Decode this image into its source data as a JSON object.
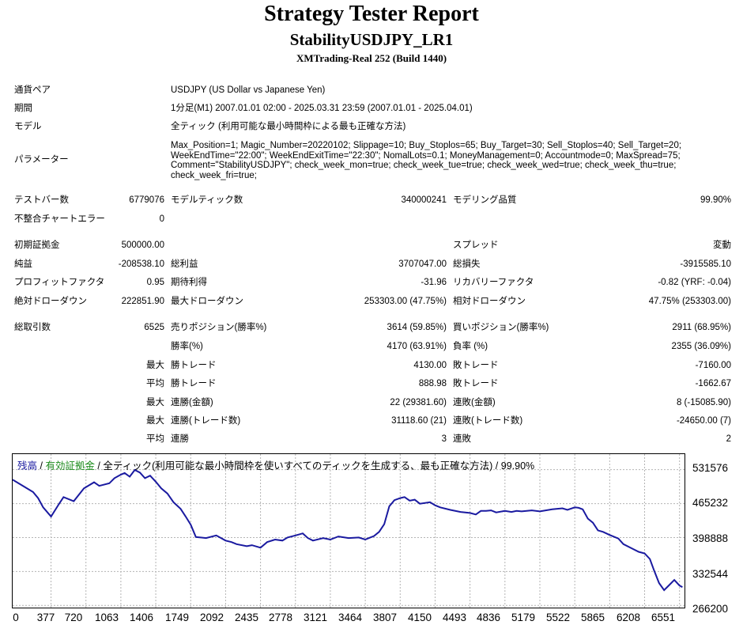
{
  "report": {
    "title": "Strategy Tester Report",
    "subtitle": "StabilityUSDJPY_LR1",
    "server": "XMTrading-Real 252 (Build 1440)"
  },
  "info": {
    "symbol_label": "通貨ペア",
    "symbol_value": "USDJPY (US Dollar vs Japanese Yen)",
    "period_label": "期間",
    "period_value": "1分足(M1) 2007.01.01 02:00 - 2025.03.31 23:59 (2007.01.01 - 2025.04.01)",
    "model_label": "モデル",
    "model_value": "全ティック (利用可能な最小時間枠による最も正確な方法)",
    "params_label": "パラメーター",
    "params_value": "Max_Position=1; Magic_Number=20220102; Slippage=10; Buy_Stoplos=65; Buy_Target=30; Sell_Stoplos=40; Sell_Target=20; WeekEndTime=\"22:00\"; WeekEndExitTime=\"22:30\"; NomalLots=0.1; MoneyManagement=0; Accountmode=0; MaxSpread=75; Comment=\"StabilityUSDJPY\"; check_week_mon=true; check_week_tue=true; check_week_wed=true; check_week_thu=true; check_week_fri=true;"
  },
  "stats": {
    "bars_label": "テストバー数",
    "bars_value": "6779076",
    "ticks_label": "モデルティック数",
    "ticks_value": "340000241",
    "quality_label": "モデリング品質",
    "quality_value": "99.90%",
    "mismatch_label": "不整合チャートエラー",
    "mismatch_value": "0",
    "deposit_label": "初期証拠金",
    "deposit_value": "500000.00",
    "spread_label": "スプレッド",
    "spread_value": "変動",
    "net_label": "純益",
    "net_value": "-208538.10",
    "gross_profit_label": "総利益",
    "gross_profit_value": "3707047.00",
    "gross_loss_label": "総損失",
    "gross_loss_value": "-3915585.10",
    "pf_label": "プロフィットファクタ",
    "pf_value": "0.95",
    "payoff_label": "期待利得",
    "payoff_value": "-31.96",
    "recovery_label": "リカバリーファクタ",
    "recovery_value": "-0.82 (YRF: -0.04)",
    "abs_dd_label": "絶対ドローダウン",
    "abs_dd_value": "222851.90",
    "max_dd_label": "最大ドローダウン",
    "max_dd_value": "253303.00 (47.75%)",
    "rel_dd_label": "相対ドローダウン",
    "rel_dd_value": "47.75% (253303.00)",
    "trades_label": "総取引数",
    "trades_value": "6525",
    "short_label": "売りポジション(勝率%)",
    "short_value": "3614 (59.85%)",
    "long_label": "買いポジション(勝率%)",
    "long_value": "2911 (68.95%)",
    "winrate_label": "勝率(%)",
    "winrate_value": "4170 (63.91%)",
    "lossrate_label": "負率 (%)",
    "lossrate_value": "2355 (36.09%)",
    "max_word": "最大",
    "avg_word": "平均",
    "win_trade_label": "勝トレード",
    "loss_trade_label": "敗トレード",
    "largest_win_value": "4130.00",
    "largest_loss_value": "-7160.00",
    "average_win_value": "888.98",
    "average_loss_value": "-1662.67",
    "consec_win_amt_label": "連勝(金額)",
    "consec_win_amt_value": "22 (29381.60)",
    "consec_loss_amt_label": "連敗(金額)",
    "consec_loss_amt_value": "8 (-15085.90)",
    "consec_win_cnt_label": "連勝(トレード数)",
    "consec_win_cnt_value": "31118.60 (21)",
    "consec_loss_cnt_label": "連敗(トレード数)",
    "consec_loss_cnt_value": "-24650.00 (7)",
    "avg_consec_win_label": "連勝",
    "avg_consec_win_value": "3",
    "avg_consec_loss_label": "連敗",
    "avg_consec_loss_value": "2"
  },
  "chart_data": {
    "type": "line",
    "legend": {
      "balance": "残高",
      "sep1": " / ",
      "equity": "有効証拠金",
      "sep2": " / ",
      "description": "全ティック(利用可能な最小時間枠を使いすべてのティックを生成する、最も正確な方法) / 99.90%"
    },
    "colors": {
      "line": "#1a1aa0",
      "grid": "#b4b4b4",
      "balance_text": "#1a1aa0",
      "equity_text": "#1a8a1a"
    },
    "grid": true,
    "xlim": [
      0,
      6600
    ],
    "ylim": [
      262000,
      562000
    ],
    "x_ticks": [
      "0",
      "377",
      "720",
      "1063",
      "1406",
      "1749",
      "2092",
      "2435",
      "2778",
      "3121",
      "3464",
      "3807",
      "4150",
      "4493",
      "4836",
      "5179",
      "5522",
      "5865",
      "6208",
      "6551"
    ],
    "y_ticks": [
      "531576",
      "465232",
      "398888",
      "332544",
      "266200"
    ],
    "series": [
      {
        "x": [
          0,
          100,
          200,
          250,
          300,
          377,
          450,
          500,
          600,
          700,
          800,
          850,
          950,
          1000,
          1063,
          1100,
          1150,
          1200,
          1250,
          1300,
          1350,
          1406,
          1460,
          1520,
          1580,
          1650,
          1700,
          1749,
          1800,
          1900,
          2000,
          2092,
          2150,
          2200,
          2300,
          2350,
          2435,
          2500,
          2578,
          2650,
          2700,
          2778,
          2850,
          2900,
          2950,
          3050,
          3121,
          3200,
          3300,
          3400,
          3464,
          3500,
          3550,
          3600,
          3650,
          3700,
          3750,
          3807,
          3850,
          3900,
          3950,
          4000,
          4100,
          4150,
          4200,
          4300,
          4400,
          4493,
          4550,
          4600,
          4650,
          4700,
          4750,
          4836,
          4900,
          4950,
          5000,
          5100,
          5179,
          5300,
          5400,
          5450,
          5522,
          5560,
          5600,
          5650,
          5700,
          5750,
          5800,
          5865,
          5950,
          6000,
          6080,
          6150,
          6208,
          6260,
          6300,
          6350,
          6400,
          6450,
          6500,
          6551,
          6580
        ],
        "values": [
          512000,
          500000,
          488000,
          476000,
          458000,
          440000,
          463000,
          478000,
          470000,
          495000,
          507000,
          500000,
          505000,
          515000,
          522000,
          525000,
          518000,
          531000,
          526000,
          515000,
          520000,
          508000,
          495000,
          485000,
          468000,
          455000,
          440000,
          424000,
          400000,
          398000,
          403000,
          393000,
          390000,
          386000,
          382000,
          384000,
          379000,
          390000,
          395000,
          393000,
          399000,
          403000,
          407000,
          398000,
          393000,
          398000,
          395000,
          401000,
          398000,
          399000,
          395000,
          398000,
          402000,
          410000,
          425000,
          460000,
          472000,
          476000,
          478000,
          471000,
          473000,
          465000,
          468000,
          462000,
          458000,
          453000,
          449000,
          447000,
          444000,
          451000,
          451000,
          452000,
          448000,
          451000,
          449000,
          451000,
          450000,
          452000,
          450000,
          454000,
          456000,
          453000,
          458000,
          457000,
          454000,
          436000,
          428000,
          413000,
          410000,
          404000,
          397000,
          386000,
          378000,
          371000,
          368000,
          357000,
          335000,
          310000,
          296000,
          306000,
          316000,
          305000,
          302000
        ]
      }
    ]
  }
}
